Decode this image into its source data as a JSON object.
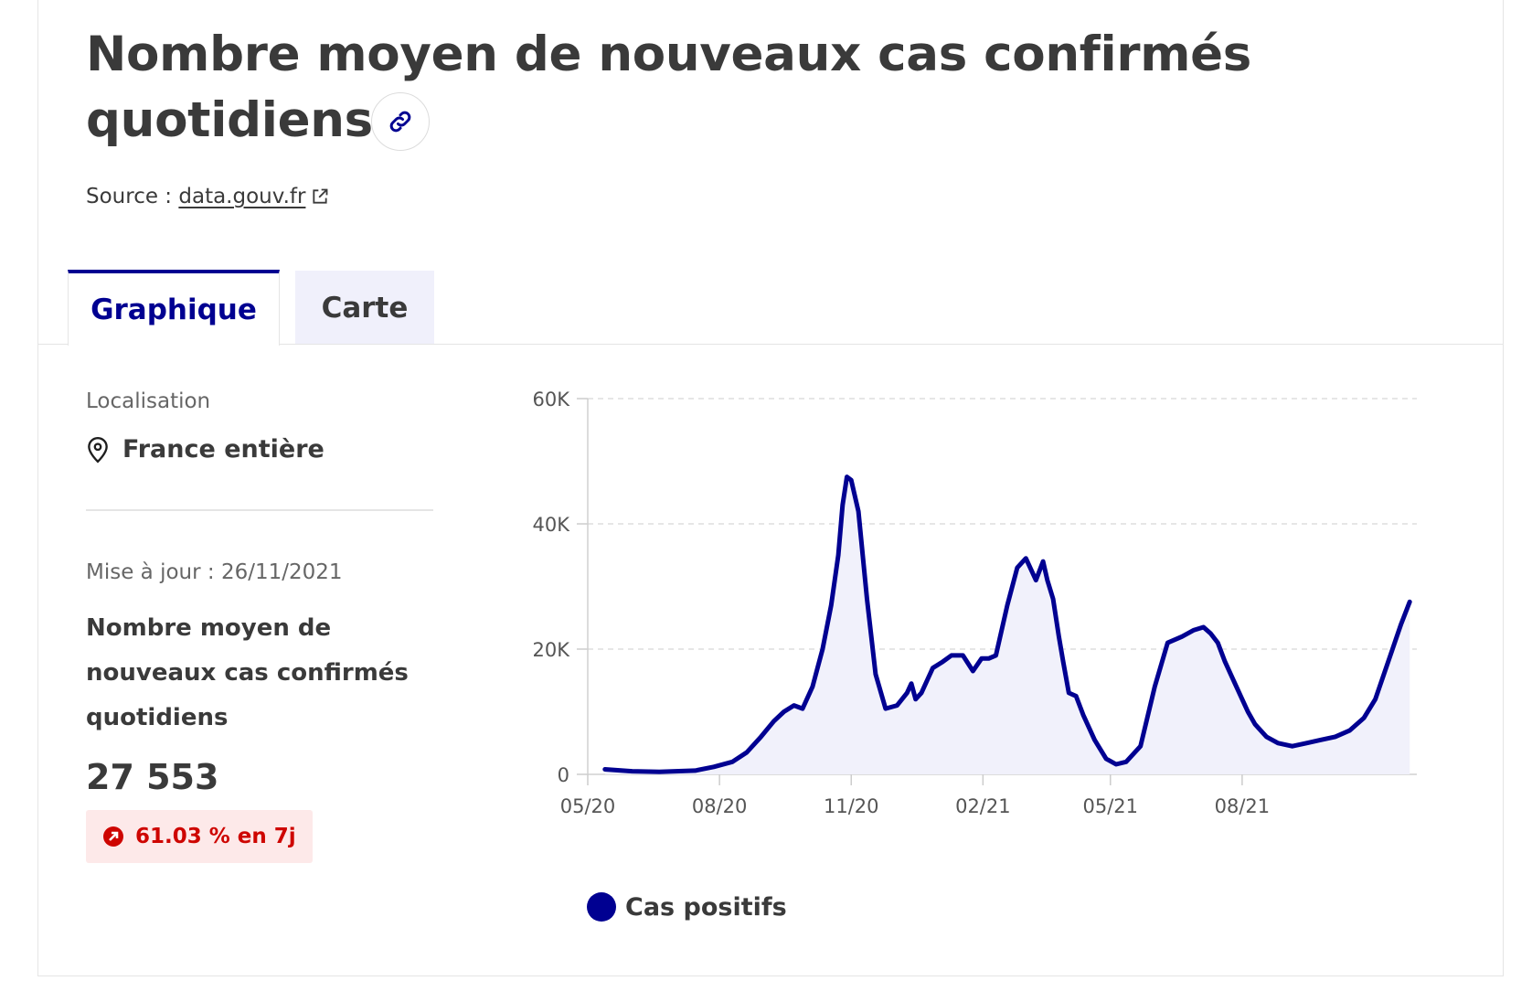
{
  "title": "Nombre moyen de nouveaux cas confirmés quotidiens",
  "source": {
    "label": "Source : ",
    "link_text": "data.gouv.fr"
  },
  "tabs": [
    {
      "label": "Graphique",
      "active": true
    },
    {
      "label": "Carte",
      "active": false
    }
  ],
  "location": {
    "label": "Localisation",
    "value": "France entière",
    "icon": "map-pin-icon"
  },
  "updated": "Mise à jour : 26/11/2021",
  "kpi": {
    "title": "Nombre moyen de nouveaux cas confirmés quotidiens",
    "value": "27 553",
    "change": "61.03 % en 7j",
    "change_icon": "arrow-up-right-icon",
    "change_color": "#ce0500"
  },
  "colors": {
    "accent": "#000091",
    "fill": "#f1f1fb",
    "grid": "#dddddd"
  },
  "chart_data": {
    "type": "area",
    "x_ticks": [
      "05/20",
      "08/20",
      "11/20",
      "02/21",
      "05/21",
      "08/21"
    ],
    "y_ticks": [
      "0",
      "20K",
      "40K",
      "60K"
    ],
    "ylim": [
      0,
      60000
    ],
    "grid": "horizontal dashed",
    "legend_position": "bottom-left",
    "series": [
      {
        "name": "Cas positifs",
        "x": [
          "2020-05-13",
          "2020-06-01",
          "2020-06-20",
          "2020-07-15",
          "2020-07-28",
          "2020-08-10",
          "2020-08-20",
          "2020-08-30",
          "2020-09-08",
          "2020-09-15",
          "2020-09-22",
          "2020-09-28",
          "2020-10-05",
          "2020-10-12",
          "2020-10-18",
          "2020-10-23",
          "2020-10-26",
          "2020-10-29",
          "2020-11-01",
          "2020-11-06",
          "2020-11-12",
          "2020-11-18",
          "2020-11-25",
          "2020-12-03",
          "2020-12-10",
          "2020-12-13",
          "2020-12-16",
          "2020-12-20",
          "2020-12-28",
          "2021-01-04",
          "2021-01-10",
          "2021-01-18",
          "2021-01-25",
          "2021-01-31",
          "2021-02-05",
          "2021-02-10",
          "2021-02-18",
          "2021-02-25",
          "2021-03-03",
          "2021-03-10",
          "2021-03-15",
          "2021-03-18",
          "2021-03-22",
          "2021-03-26",
          "2021-03-29",
          "2021-04-02",
          "2021-04-07",
          "2021-04-12",
          "2021-04-20",
          "2021-04-28",
          "2021-05-05",
          "2021-05-12",
          "2021-05-22",
          "2021-06-01",
          "2021-06-10",
          "2021-06-20",
          "2021-06-28",
          "2021-07-05",
          "2021-07-10",
          "2021-07-15",
          "2021-07-20",
          "2021-07-26",
          "2021-08-01",
          "2021-08-05",
          "2021-08-10",
          "2021-08-18",
          "2021-08-26",
          "2021-09-05",
          "2021-09-15",
          "2021-09-25",
          "2021-10-05",
          "2021-10-15",
          "2021-10-25",
          "2021-11-02",
          "2021-11-08",
          "2021-11-14",
          "2021-11-20",
          "2021-11-26"
        ],
        "values": [
          800,
          500,
          400,
          600,
          1200,
          2000,
          3500,
          6000,
          8500,
          10000,
          11000,
          10500,
          14000,
          20000,
          27000,
          35000,
          43000,
          47500,
          47000,
          42000,
          28000,
          16000,
          10500,
          11000,
          13000,
          14500,
          12000,
          13000,
          17000,
          18000,
          19000,
          19000,
          16500,
          18500,
          18500,
          19000,
          27000,
          33000,
          34500,
          31000,
          34000,
          31000,
          28000,
          22000,
          18000,
          13000,
          12500,
          9500,
          5500,
          2500,
          1600,
          2000,
          4500,
          14000,
          21000,
          22000,
          23000,
          23500,
          22500,
          21000,
          18000,
          15000,
          12000,
          10000,
          8000,
          6000,
          5000,
          4500,
          5000,
          5500,
          6000,
          7000,
          9000,
          12000,
          16000,
          20000,
          24000,
          27553
        ]
      }
    ]
  }
}
